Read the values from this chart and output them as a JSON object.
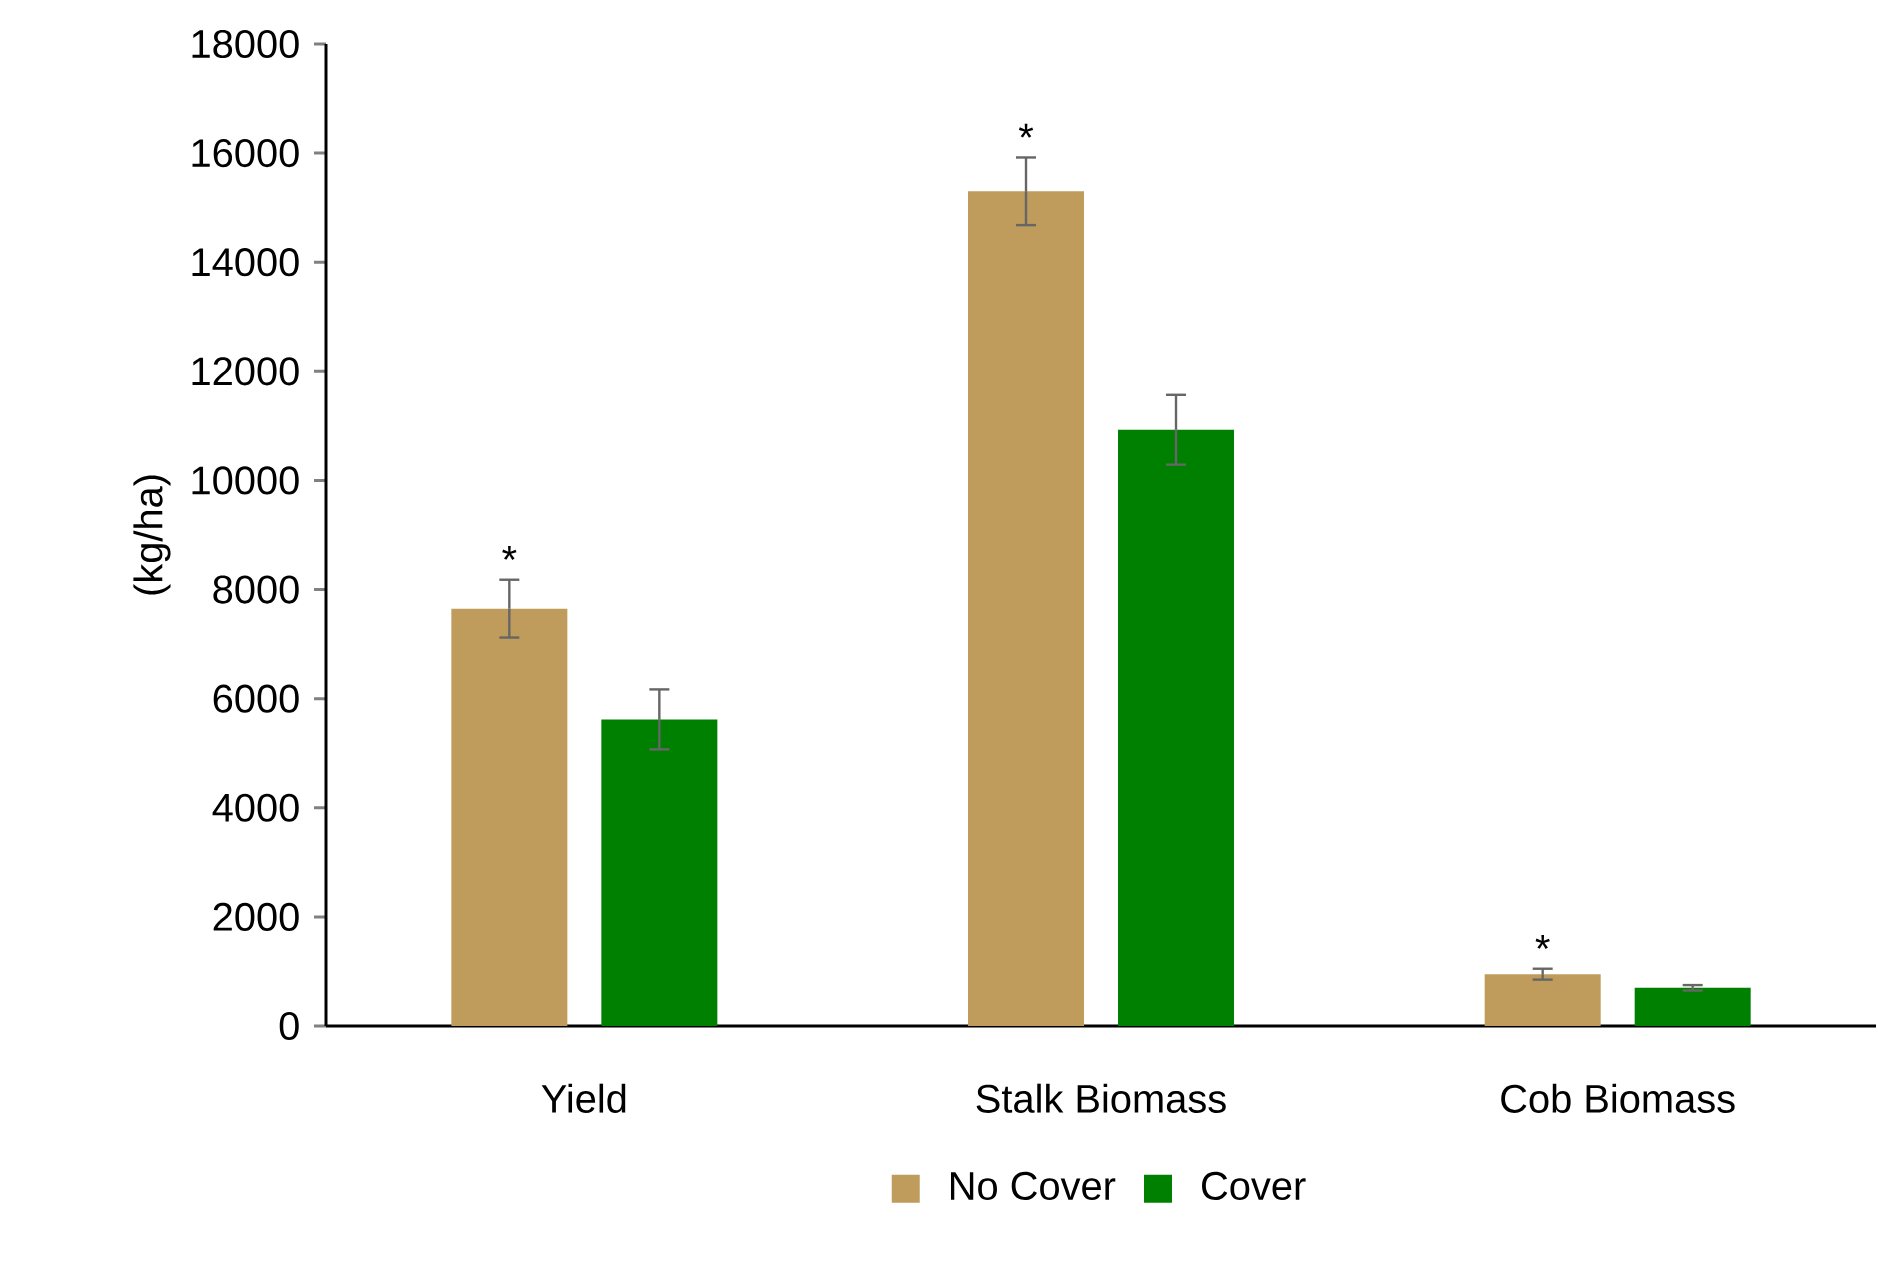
{
  "chart_data": {
    "type": "bar",
    "ylabel": "(kg/ha)",
    "categories": [
      "Yield",
      "Stalk Biomass",
      "Cob Biomass"
    ],
    "series": [
      {
        "name": "No Cover",
        "color": "#bf9b5c",
        "values": [
          7650,
          15300,
          950
        ],
        "errors": [
          530,
          620,
          100
        ]
      },
      {
        "name": "Cover",
        "color": "#008000",
        "values": [
          5620,
          10930,
          700
        ],
        "errors": [
          550,
          640,
          50
        ]
      }
    ],
    "ylim": [
      0,
      18000
    ],
    "yticks": [
      0,
      2000,
      4000,
      6000,
      8000,
      10000,
      12000,
      14000,
      16000,
      18000
    ],
    "annotations": [
      "*",
      "*",
      "*"
    ],
    "legend": "bottom"
  }
}
